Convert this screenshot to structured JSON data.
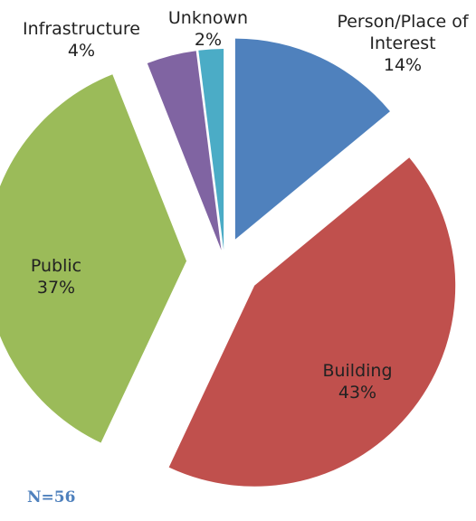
{
  "chart_data": {
    "type": "pie",
    "categories": [
      "Person/Place of Interest",
      "Building",
      "Public",
      "Infrastructure",
      "Unknown"
    ],
    "values": [
      14,
      43,
      37,
      4,
      2
    ],
    "value_labels": [
      "14%",
      "43%",
      "37%",
      "4%",
      "2%"
    ],
    "colors": [
      "#4f81bd",
      "#c0504d",
      "#9bbb59",
      "#8064a2",
      "#4bacc6"
    ],
    "note": "N=56"
  }
}
